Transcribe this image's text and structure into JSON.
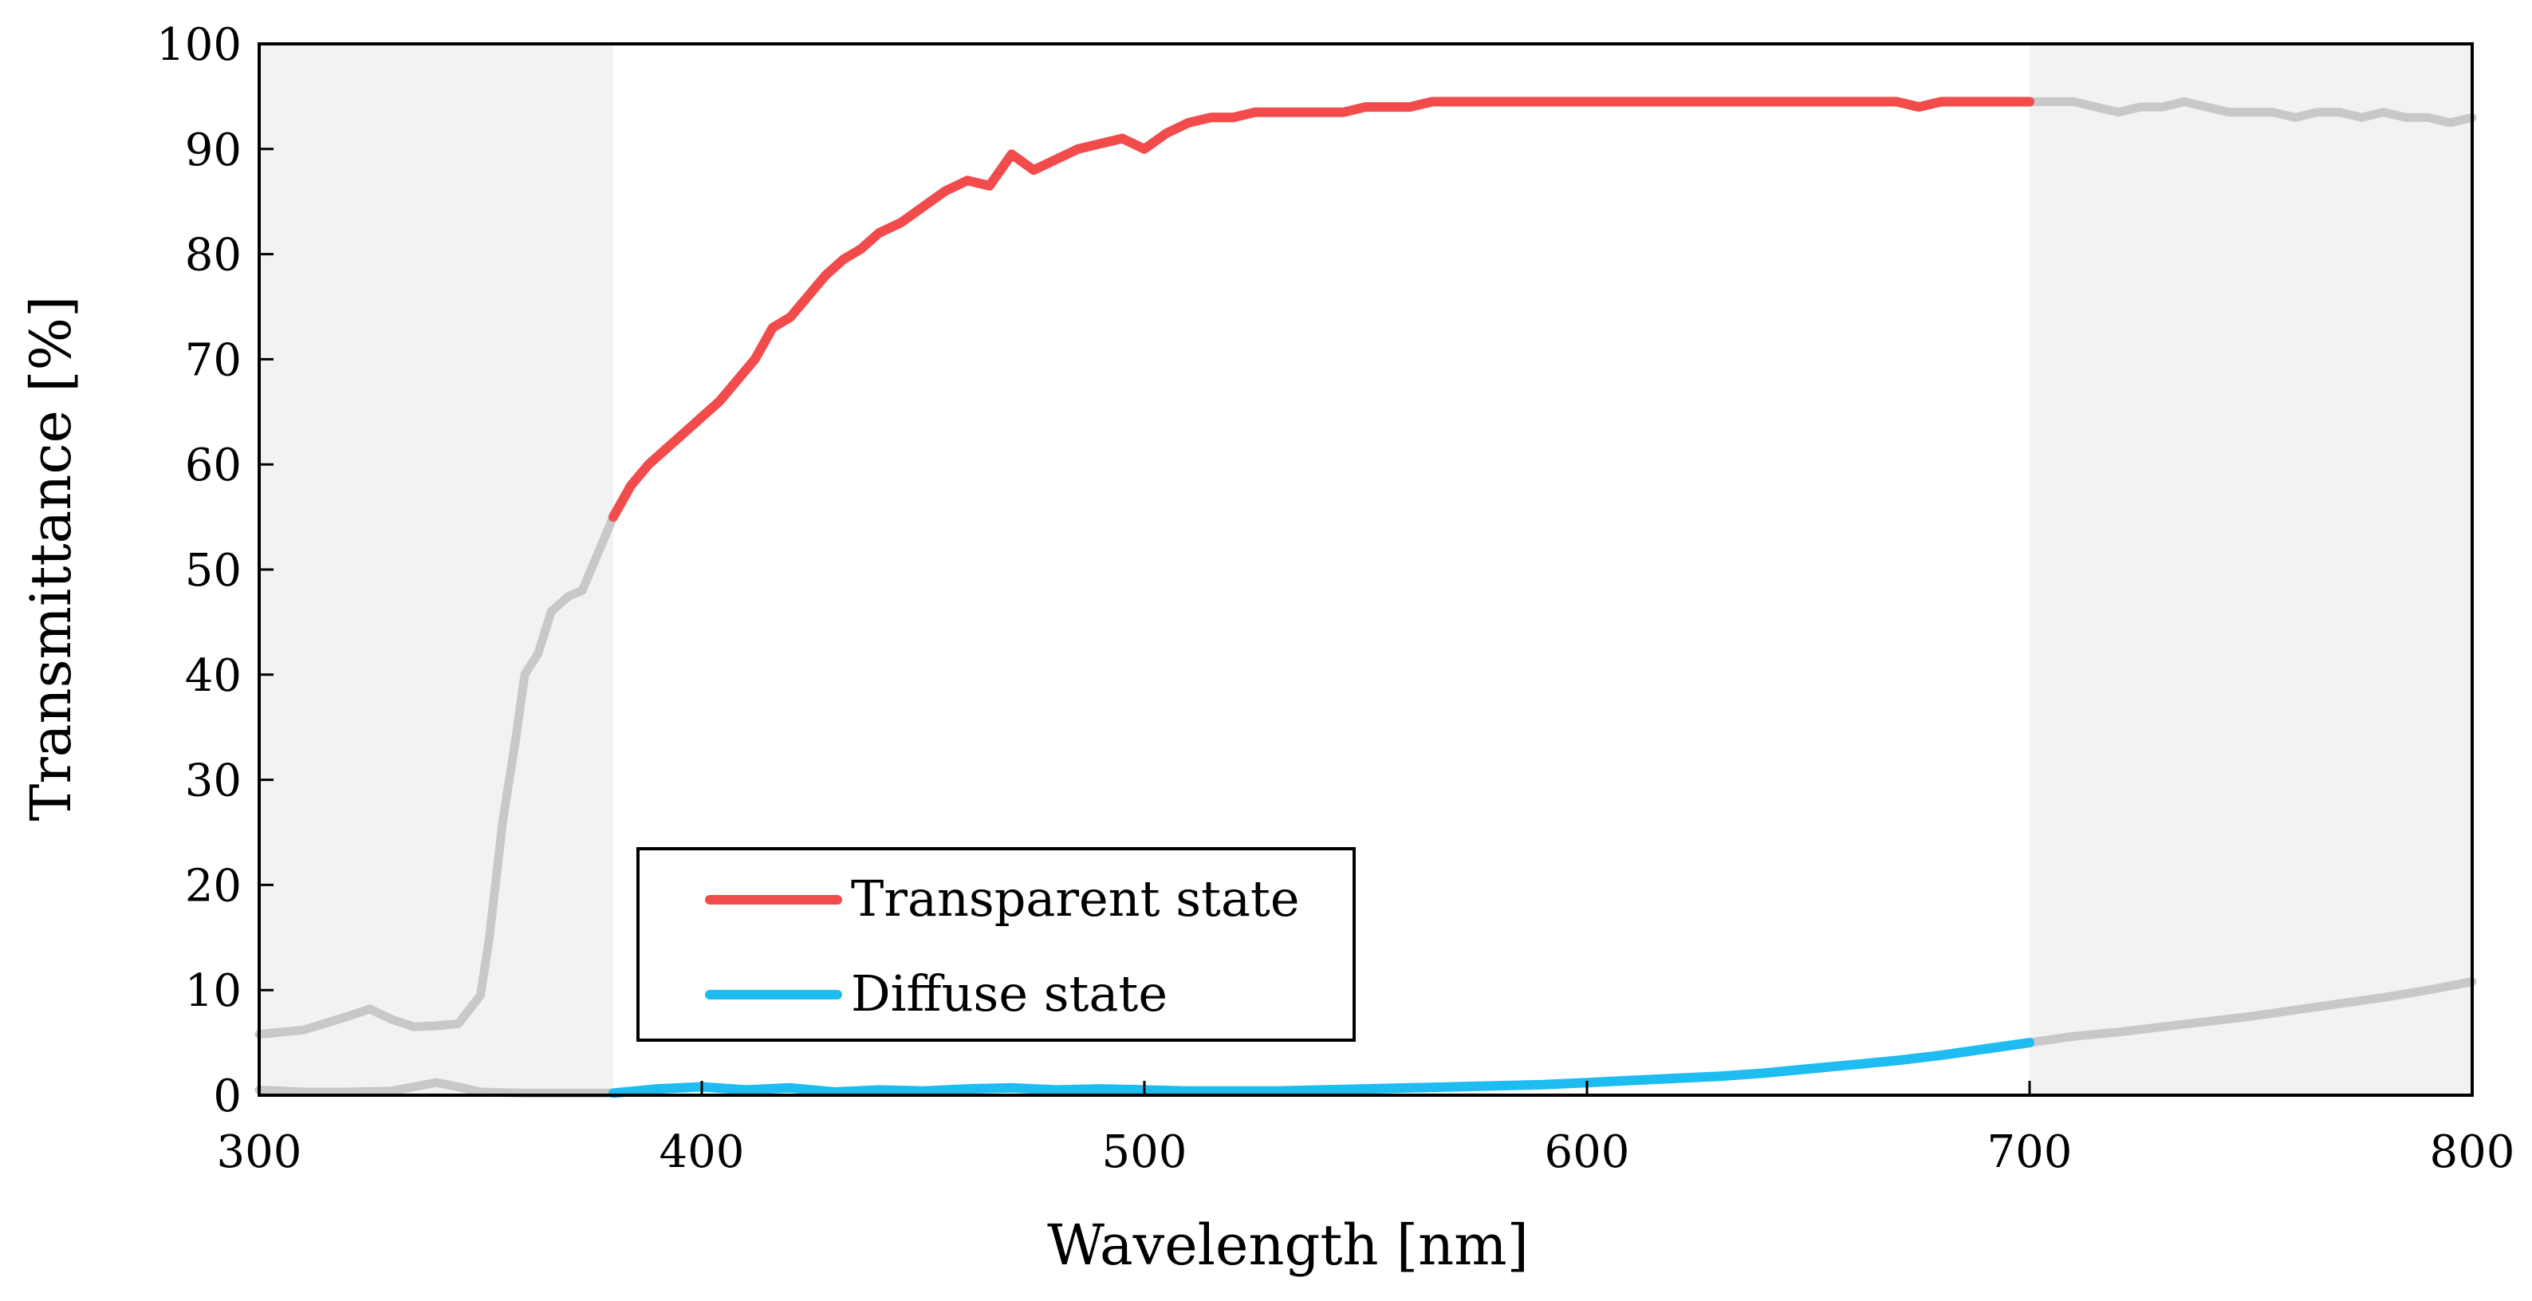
{
  "chart_data": {
    "type": "line",
    "title": "",
    "xlabel": "Wavelength [nm]",
    "ylabel": "Transmittance [%]",
    "xlim": [
      300,
      800
    ],
    "ylim": [
      0,
      100
    ],
    "x_ticks": [
      300,
      400,
      500,
      600,
      700,
      800
    ],
    "y_ticks": [
      0,
      10,
      20,
      30,
      40,
      50,
      60,
      70,
      80,
      90,
      100
    ],
    "grid": false,
    "legend_position": "bottom-left",
    "shaded_regions": [
      {
        "x_start": 300,
        "x_end": 380,
        "color": "#f2f2f2"
      },
      {
        "x_start": 700,
        "x_end": 800,
        "color": "#f2f2f2"
      }
    ],
    "highlight_range": [
      380,
      700
    ],
    "out_of_range_color": "#c8c8c8",
    "series": [
      {
        "name": "Transparent state",
        "color": "#f24b4b",
        "x": [
          300,
          310,
          320,
          325,
          330,
          335,
          340,
          345,
          350,
          352,
          355,
          358,
          360,
          363,
          366,
          370,
          373,
          376,
          380,
          384,
          388,
          392,
          396,
          400,
          404,
          408,
          412,
          416,
          420,
          424,
          428,
          432,
          436,
          440,
          445,
          450,
          455,
          460,
          465,
          470,
          475,
          480,
          485,
          490,
          495,
          500,
          505,
          510,
          515,
          520,
          525,
          530,
          535,
          540,
          545,
          550,
          555,
          560,
          565,
          570,
          575,
          580,
          585,
          590,
          595,
          600,
          605,
          610,
          615,
          620,
          625,
          630,
          635,
          640,
          645,
          650,
          655,
          660,
          665,
          670,
          675,
          680,
          685,
          690,
          695,
          700,
          705,
          710,
          715,
          720,
          725,
          730,
          735,
          740,
          745,
          750,
          755,
          760,
          765,
          770,
          775,
          780,
          785,
          790,
          795,
          800
        ],
        "values": [
          5.8,
          6.2,
          7.5,
          8.2,
          7.2,
          6.5,
          6.6,
          6.8,
          9.5,
          15,
          26,
          34,
          40,
          42,
          46,
          47.5,
          48,
          51,
          55,
          58,
          60,
          61.5,
          63,
          64.5,
          66,
          68,
          70,
          73,
          74,
          76,
          78,
          79.5,
          80.5,
          82,
          83,
          84.5,
          86,
          87,
          86.5,
          89.5,
          88,
          89,
          90,
          90.5,
          91,
          90,
          91.5,
          92.5,
          93,
          93,
          93.5,
          93.5,
          93.5,
          93.5,
          93.5,
          94,
          94,
          94,
          94.5,
          94.5,
          94.5,
          94.5,
          94.5,
          94.5,
          94.5,
          94.5,
          94.5,
          94.5,
          94.5,
          94.5,
          94.5,
          94.5,
          94.5,
          94.5,
          94.5,
          94.5,
          94.5,
          94.5,
          94.5,
          94.5,
          94,
          94.5,
          94.5,
          94.5,
          94.5,
          94.5,
          94.5,
          94.5,
          94,
          93.5,
          94,
          94,
          94.5,
          94,
          93.5,
          93.5,
          93.5,
          93,
          93.5,
          93.5,
          93,
          93.5,
          93,
          93,
          92.5,
          93
        ]
      },
      {
        "name": "Diffuse state",
        "color": "#1ebcf0",
        "x": [
          300,
          310,
          320,
          330,
          340,
          345,
          350,
          360,
          370,
          380,
          390,
          400,
          410,
          420,
          430,
          440,
          450,
          460,
          470,
          480,
          490,
          500,
          510,
          520,
          530,
          540,
          550,
          560,
          570,
          580,
          590,
          600,
          610,
          620,
          630,
          640,
          650,
          660,
          670,
          680,
          690,
          700,
          710,
          720,
          730,
          740,
          750,
          760,
          770,
          780,
          790,
          800
        ],
        "values": [
          0.5,
          0.3,
          0.3,
          0.4,
          1.2,
          0.8,
          0.3,
          0.2,
          0.2,
          0.2,
          0.6,
          0.8,
          0.5,
          0.7,
          0.3,
          0.5,
          0.4,
          0.6,
          0.7,
          0.5,
          0.6,
          0.5,
          0.4,
          0.4,
          0.4,
          0.5,
          0.6,
          0.7,
          0.8,
          0.9,
          1.0,
          1.2,
          1.4,
          1.6,
          1.8,
          2.1,
          2.5,
          2.9,
          3.3,
          3.8,
          4.4,
          5.0,
          5.6,
          6.0,
          6.5,
          7.0,
          7.5,
          8.1,
          8.7,
          9.3,
          10.0,
          10.8
        ]
      }
    ]
  }
}
